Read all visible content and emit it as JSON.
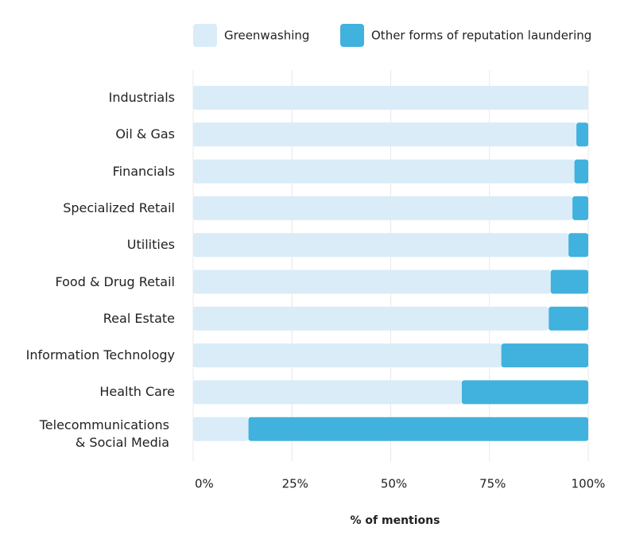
{
  "chart_data": {
    "type": "stacked-barh",
    "categories": [
      "Industrials",
      "Oil & Gas",
      "Financials",
      "Specialized Retail",
      "Utilities",
      "Food & Drug Retail",
      "Real Estate",
      "Information Technology",
      "Health Care",
      "Telecommunications & Social Media"
    ],
    "series": [
      {
        "name": "Greenwashing",
        "color": "#d9ecf8",
        "values": [
          100,
          97,
          96.5,
          96,
          95,
          90.5,
          90,
          78,
          68,
          14
        ]
      },
      {
        "name": "Other forms of reputation laundering",
        "color": "#41b1dd",
        "values": [
          0,
          3,
          3.5,
          4,
          5,
          9.5,
          10,
          22,
          32,
          86
        ]
      }
    ],
    "xlim": [
      0,
      100
    ],
    "xticks": [
      {
        "value": 0,
        "label": "0%"
      },
      {
        "value": 25,
        "label": "25%"
      },
      {
        "value": 50,
        "label": "50%"
      },
      {
        "value": 75,
        "label": "75%"
      },
      {
        "value": 100,
        "label": "100%"
      }
    ],
    "xlabel": "% of mentions",
    "grid": true,
    "legend": "top"
  }
}
